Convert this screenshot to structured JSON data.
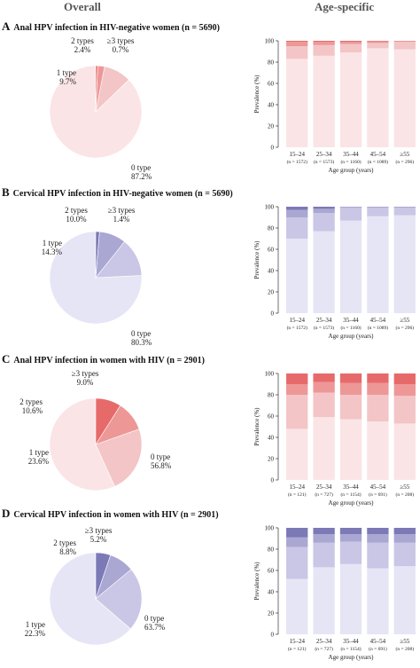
{
  "headers": {
    "overall": "Overall",
    "age_specific": "Age-specific"
  },
  "colors": {
    "red": [
      "#fbe4e6",
      "#f3c5c6",
      "#ee9797",
      "#e76a6a"
    ],
    "purple": [
      "#e6e5f5",
      "#c9c6e6",
      "#aaa7d3",
      "#7b79b6"
    ]
  },
  "panels": [
    {
      "letter": "A",
      "title": "Anal HPV infection in HIV-negative women (n = 5690)",
      "palette": "red",
      "pie_labels": [
        {
          "name": "0 type",
          "pct": "87.2%"
        },
        {
          "name": "1 type",
          "pct": "9.7%"
        },
        {
          "name": "2 types",
          "pct": "2.4%"
        },
        {
          "name": "≥3 types",
          "pct": "0.7%"
        }
      ],
      "ns": [
        "(n = 1572)",
        "(n = 1573)",
        "(n = 1160)",
        "(n = 1089)",
        "(n = 296)"
      ]
    },
    {
      "letter": "B",
      "title": "Cervical HPV infection in HIV-negative women (n = 5690)",
      "palette": "purple",
      "pie_labels": [
        {
          "name": "0 type",
          "pct": "80.3%"
        },
        {
          "name": "1 type",
          "pct": "14.3%"
        },
        {
          "name": "2 types",
          "pct": "10.0%"
        },
        {
          "name": "≥3 types",
          "pct": "1.4%"
        }
      ],
      "ns": [
        "(n = 1572)",
        "(n = 1573)",
        "(n = 1160)",
        "(n = 1089)",
        "(n = 296)"
      ]
    },
    {
      "letter": "C",
      "title": "Anal HPV infection in women with HIV (n = 2901)",
      "palette": "red",
      "pie_labels": [
        {
          "name": "0 type",
          "pct": "56.8%"
        },
        {
          "name": "1 type",
          "pct": "23.6%"
        },
        {
          "name": "2 types",
          "pct": "10.6%"
        },
        {
          "name": "≥3 types",
          "pct": "9.0%"
        }
      ],
      "ns": [
        "(n = 121)",
        "(n = 727)",
        "(n = 1154)",
        "(n = 691)",
        "(n = 208)"
      ]
    },
    {
      "letter": "D",
      "title": "Cervical HPV infection in women with HIV (n = 2901)",
      "palette": "purple",
      "pie_labels": [
        {
          "name": "0 type",
          "pct": "63.7%"
        },
        {
          "name": "1 type",
          "pct": "22.3%"
        },
        {
          "name": "2 types",
          "pct": "8.8%"
        },
        {
          "name": "≥3 types",
          "pct": "5.2%"
        }
      ],
      "ns": [
        "(n = 121)",
        "(n = 727)",
        "(n = 1154)",
        "(n = 691)",
        "(n = 208)"
      ]
    }
  ],
  "chart_data": [
    {
      "type": "pie",
      "categories": [
        "0 type",
        "1 type",
        "2 types",
        "≥3 types"
      ],
      "values": [
        87.2,
        9.7,
        2.4,
        0.7
      ]
    },
    {
      "type": "bar",
      "stacked": true,
      "categories": [
        "15–24",
        "25–34",
        "35–44",
        "45–54",
        "≥55"
      ],
      "xlabel": "Age group (years)",
      "ylabel": "Prevalence (%)",
      "ylim": [
        0,
        100
      ],
      "yticks": [
        0,
        20,
        40,
        60,
        80,
        100
      ],
      "series": [
        {
          "values": [
            83,
            86,
            89,
            93,
            92
          ]
        },
        {
          "values": [
            12,
            10,
            8,
            5,
            7
          ]
        },
        {
          "values": [
            4,
            3,
            2,
            1.5,
            1
          ]
        },
        {
          "values": [
            1,
            1,
            1,
            0.5,
            0
          ]
        }
      ]
    },
    {
      "type": "pie",
      "categories": [
        "0 type",
        "1 type",
        "2 types",
        "≥3 types"
      ],
      "values": [
        80.3,
        14.3,
        10.0,
        1.4
      ]
    },
    {
      "type": "bar",
      "stacked": true,
      "categories": [
        "15–24",
        "25–34",
        "35–44",
        "45–54",
        "≥55"
      ],
      "xlabel": "Age group (years)",
      "ylabel": "Prevalence (%)",
      "ylim": [
        0,
        100
      ],
      "yticks": [
        0,
        20,
        40,
        60,
        80,
        100
      ],
      "series": [
        {
          "values": [
            70,
            77,
            87,
            91,
            92
          ]
        },
        {
          "values": [
            20,
            17,
            12,
            8,
            7
          ]
        },
        {
          "values": [
            7,
            4,
            1,
            1,
            1
          ]
        },
        {
          "values": [
            3,
            2,
            0,
            0,
            0
          ]
        }
      ]
    },
    {
      "type": "pie",
      "categories": [
        "0 type",
        "1 type",
        "2 types",
        "≥3 types"
      ],
      "values": [
        56.8,
        23.6,
        10.6,
        9.0
      ]
    },
    {
      "type": "bar",
      "stacked": true,
      "categories": [
        "15–24",
        "25–34",
        "35–44",
        "45–54",
        "≥55"
      ],
      "xlabel": "Age group (years)",
      "ylabel": "Prevalence (%)",
      "ylim": [
        0,
        100
      ],
      "yticks": [
        0,
        20,
        40,
        60,
        80,
        100
      ],
      "series": [
        {
          "values": [
            48,
            59,
            57,
            55,
            53
          ]
        },
        {
          "values": [
            32,
            23,
            23,
            25,
            26
          ]
        },
        {
          "values": [
            10,
            10,
            11,
            11,
            11
          ]
        },
        {
          "values": [
            10,
            8,
            9,
            9,
            10
          ]
        }
      ]
    },
    {
      "type": "pie",
      "categories": [
        "0 type",
        "1 type",
        "2 types",
        "≥3 types"
      ],
      "values": [
        63.7,
        22.3,
        8.8,
        5.2
      ]
    },
    {
      "type": "bar",
      "stacked": true,
      "categories": [
        "15–24",
        "25–34",
        "35–44",
        "45–54",
        "≥55"
      ],
      "xlabel": "Age group (years)",
      "ylabel": "Prevalence (%)",
      "ylim": [
        0,
        100
      ],
      "yticks": [
        0,
        20,
        40,
        60,
        80,
        100
      ],
      "series": [
        {
          "values": [
            52,
            63,
            66,
            62,
            64
          ]
        },
        {
          "values": [
            30,
            23,
            21,
            24,
            22
          ]
        },
        {
          "values": [
            9,
            8,
            7,
            8,
            8
          ]
        },
        {
          "values": [
            9,
            6,
            6,
            6,
            6
          ]
        }
      ]
    }
  ]
}
